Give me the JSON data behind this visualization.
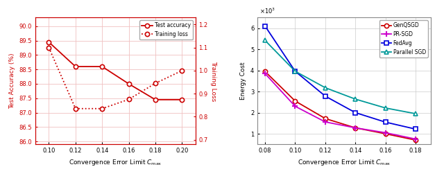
{
  "left_chart": {
    "x": [
      0.1,
      0.12,
      0.14,
      0.16,
      0.18,
      0.2
    ],
    "test_accuracy": [
      89.45,
      88.6,
      88.6,
      88.0,
      87.45,
      87.45
    ],
    "training_loss": [
      1.1,
      0.835,
      0.835,
      0.875,
      0.945,
      1.0
    ],
    "xlabel": "Convergence Error Limit $C_{\\mathrm{max}}$",
    "ylabel_left": "Test Accuracy (%)",
    "ylabel_right": "Training Loss",
    "legend_test": "Test accuracy",
    "legend_loss": "Training loss",
    "xlim": [
      0.09,
      0.21
    ],
    "ylim_left": [
      85.9,
      90.3
    ],
    "ylim_right": [
      0.68,
      1.23
    ],
    "xticks": [
      0.1,
      0.12,
      0.14,
      0.16,
      0.18,
      0.2
    ],
    "yticks_left": [
      86.0,
      86.5,
      87.0,
      87.5,
      88.0,
      88.5,
      89.0,
      89.5,
      90.0
    ],
    "yticks_right": [
      0.7,
      0.8,
      0.9,
      1.0,
      1.1,
      1.2
    ],
    "color": "#cc0000"
  },
  "right_chart": {
    "x": [
      0.08,
      0.1,
      0.12,
      0.14,
      0.16,
      0.18
    ],
    "GenQSGD": [
      3950,
      2550,
      1720,
      1280,
      1000,
      700
    ],
    "PR_SGD": [
      3850,
      2300,
      1560,
      1280,
      1050,
      750
    ],
    "FedAvg": [
      6100,
      3960,
      2780,
      2000,
      1550,
      1220
    ],
    "ParallelSGD": [
      5420,
      3960,
      3180,
      2640,
      2220,
      1950
    ],
    "xlabel": "Convergence Error Limit $C_{\\mathrm{max}}$",
    "ylabel": "Energy Cost",
    "xlim": [
      0.075,
      0.19
    ],
    "ylim": [
      500,
      6500
    ],
    "xticks": [
      0.08,
      0.1,
      0.12,
      0.14,
      0.16,
      0.18
    ],
    "yticks": [
      1000,
      2000,
      3000,
      4000,
      5000,
      6000
    ],
    "color_GenQSGD": "#cc0000",
    "color_PR_SGD": "#cc00cc",
    "color_FedAvg": "#0000dd",
    "color_ParallelSGD": "#009999",
    "legend_GenQSGD": "GenQSGD",
    "legend_PR_SGD": "PR-SGD",
    "legend_FedAvg": "FedAvg",
    "legend_ParallelSGD": "Parallel SGD"
  }
}
